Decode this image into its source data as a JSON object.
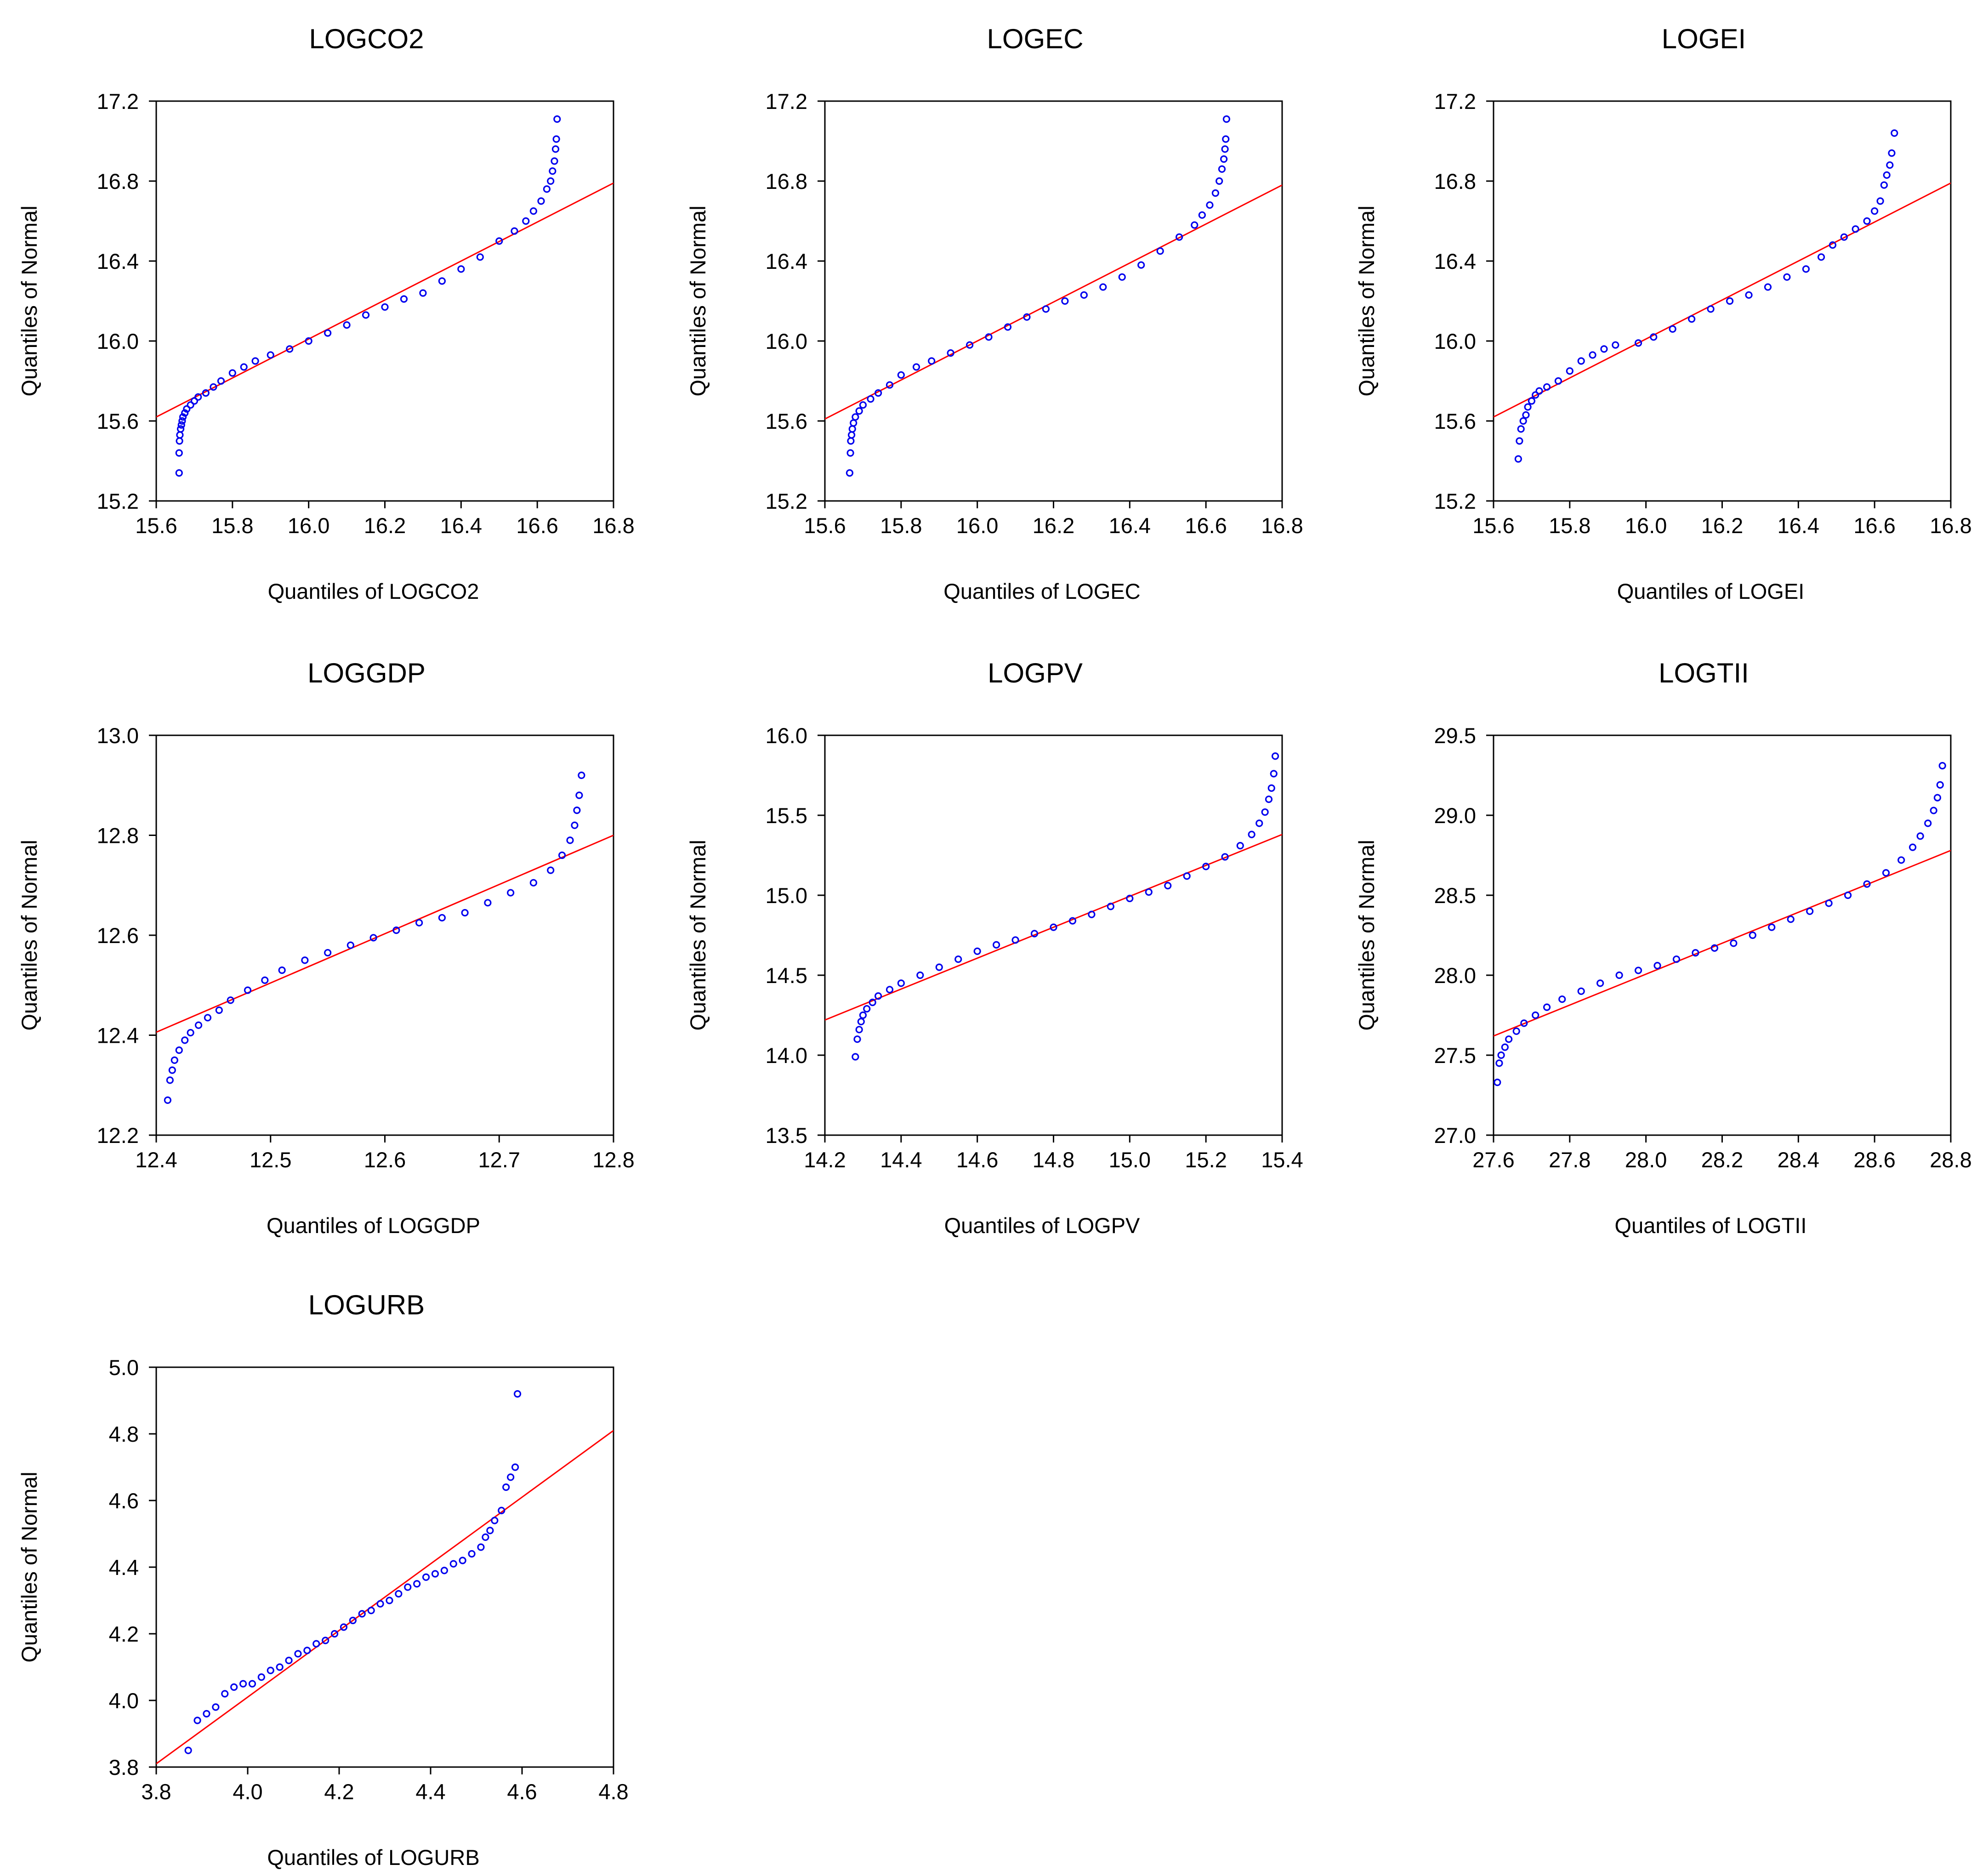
{
  "colors": {
    "points": "#0000ee",
    "reference_line": "#ff0000",
    "axes": "#000000",
    "background": "#ffffff"
  },
  "chart_data": [
    {
      "type": "scatter",
      "title": "LOGCO2",
      "xlabel": "Quantiles of LOGCO2",
      "ylabel": "Quantiles of Normal",
      "xlim": [
        15.6,
        16.8
      ],
      "ylim": [
        15.2,
        17.2
      ],
      "xticks": [
        "15.6",
        "15.8",
        "16.0",
        "16.2",
        "16.4",
        "16.6",
        "16.8"
      ],
      "yticks": [
        "15.2",
        "15.6",
        "16.0",
        "16.4",
        "16.8",
        "17.2"
      ],
      "reference_line": [
        [
          15.6,
          15.62
        ],
        [
          16.8,
          16.79
        ]
      ],
      "points": [
        [
          15.66,
          15.34
        ],
        [
          15.66,
          15.44
        ],
        [
          15.661,
          15.5
        ],
        [
          15.662,
          15.53
        ],
        [
          15.664,
          15.56
        ],
        [
          15.666,
          15.58
        ],
        [
          15.668,
          15.6
        ],
        [
          15.67,
          15.62
        ],
        [
          15.675,
          15.64
        ],
        [
          15.68,
          15.66
        ],
        [
          15.69,
          15.68
        ],
        [
          15.7,
          15.7
        ],
        [
          15.71,
          15.72
        ],
        [
          15.73,
          15.74
        ],
        [
          15.75,
          15.77
        ],
        [
          15.77,
          15.8
        ],
        [
          15.8,
          15.84
        ],
        [
          15.83,
          15.87
        ],
        [
          15.86,
          15.9
        ],
        [
          15.9,
          15.93
        ],
        [
          15.95,
          15.96
        ],
        [
          16.0,
          16.0
        ],
        [
          16.05,
          16.04
        ],
        [
          16.1,
          16.08
        ],
        [
          16.15,
          16.13
        ],
        [
          16.2,
          16.17
        ],
        [
          16.25,
          16.21
        ],
        [
          16.3,
          16.24
        ],
        [
          16.35,
          16.3
        ],
        [
          16.4,
          16.36
        ],
        [
          16.45,
          16.42
        ],
        [
          16.5,
          16.5
        ],
        [
          16.54,
          16.55
        ],
        [
          16.57,
          16.6
        ],
        [
          16.59,
          16.65
        ],
        [
          16.61,
          16.7
        ],
        [
          16.625,
          16.76
        ],
        [
          16.635,
          16.8
        ],
        [
          16.64,
          16.85
        ],
        [
          16.645,
          16.9
        ],
        [
          16.648,
          16.96
        ],
        [
          16.65,
          17.01
        ],
        [
          16.652,
          17.11
        ]
      ]
    },
    {
      "type": "scatter",
      "title": "LOGEC",
      "xlabel": "Quantiles of LOGEC",
      "ylabel": "Quantiles of Normal",
      "xlim": [
        15.6,
        16.8
      ],
      "ylim": [
        15.2,
        17.2
      ],
      "xticks": [
        "15.6",
        "15.8",
        "16.0",
        "16.2",
        "16.4",
        "16.6",
        "16.8"
      ],
      "yticks": [
        "15.2",
        "15.6",
        "16.0",
        "16.4",
        "16.8",
        "17.2"
      ],
      "reference_line": [
        [
          15.6,
          15.61
        ],
        [
          16.8,
          16.78
        ]
      ],
      "points": [
        [
          15.665,
          15.34
        ],
        [
          15.667,
          15.44
        ],
        [
          15.668,
          15.5
        ],
        [
          15.67,
          15.53
        ],
        [
          15.672,
          15.56
        ],
        [
          15.675,
          15.59
        ],
        [
          15.68,
          15.62
        ],
        [
          15.69,
          15.65
        ],
        [
          15.7,
          15.68
        ],
        [
          15.72,
          15.71
        ],
        [
          15.74,
          15.74
        ],
        [
          15.77,
          15.78
        ],
        [
          15.8,
          15.83
        ],
        [
          15.84,
          15.87
        ],
        [
          15.88,
          15.9
        ],
        [
          15.93,
          15.94
        ],
        [
          15.98,
          15.98
        ],
        [
          16.03,
          16.02
        ],
        [
          16.08,
          16.07
        ],
        [
          16.13,
          16.12
        ],
        [
          16.18,
          16.16
        ],
        [
          16.23,
          16.2
        ],
        [
          16.28,
          16.23
        ],
        [
          16.33,
          16.27
        ],
        [
          16.38,
          16.32
        ],
        [
          16.43,
          16.38
        ],
        [
          16.48,
          16.45
        ],
        [
          16.53,
          16.52
        ],
        [
          16.57,
          16.58
        ],
        [
          16.59,
          16.63
        ],
        [
          16.61,
          16.68
        ],
        [
          16.625,
          16.74
        ],
        [
          16.635,
          16.8
        ],
        [
          16.642,
          16.86
        ],
        [
          16.647,
          16.91
        ],
        [
          16.65,
          16.96
        ],
        [
          16.652,
          17.01
        ],
        [
          16.654,
          17.11
        ]
      ]
    },
    {
      "type": "scatter",
      "title": "LOGEI",
      "xlabel": "Quantiles of LOGEI",
      "ylabel": "Quantiles of Normal",
      "xlim": [
        15.6,
        16.8
      ],
      "ylim": [
        15.2,
        17.2
      ],
      "xticks": [
        "15.6",
        "15.8",
        "16.0",
        "16.2",
        "16.4",
        "16.6",
        "16.8"
      ],
      "yticks": [
        "15.2",
        "15.6",
        "16.0",
        "16.4",
        "16.8",
        "17.2"
      ],
      "reference_line": [
        [
          15.6,
          15.62
        ],
        [
          16.8,
          16.79
        ]
      ],
      "points": [
        [
          15.665,
          15.41
        ],
        [
          15.668,
          15.5
        ],
        [
          15.672,
          15.56
        ],
        [
          15.678,
          15.6
        ],
        [
          15.685,
          15.63
        ],
        [
          15.69,
          15.67
        ],
        [
          15.7,
          15.7
        ],
        [
          15.71,
          15.73
        ],
        [
          15.72,
          15.75
        ],
        [
          15.74,
          15.77
        ],
        [
          15.77,
          15.8
        ],
        [
          15.8,
          15.85
        ],
        [
          15.83,
          15.9
        ],
        [
          15.86,
          15.93
        ],
        [
          15.89,
          15.96
        ],
        [
          15.92,
          15.98
        ],
        [
          15.98,
          15.99
        ],
        [
          16.02,
          16.02
        ],
        [
          16.07,
          16.06
        ],
        [
          16.12,
          16.11
        ],
        [
          16.17,
          16.16
        ],
        [
          16.22,
          16.2
        ],
        [
          16.27,
          16.23
        ],
        [
          16.32,
          16.27
        ],
        [
          16.37,
          16.32
        ],
        [
          16.42,
          16.36
        ],
        [
          16.46,
          16.42
        ],
        [
          16.49,
          16.48
        ],
        [
          16.52,
          16.52
        ],
        [
          16.55,
          16.56
        ],
        [
          16.58,
          16.6
        ],
        [
          16.6,
          16.65
        ],
        [
          16.615,
          16.7
        ],
        [
          16.625,
          16.78
        ],
        [
          16.632,
          16.83
        ],
        [
          16.64,
          16.88
        ],
        [
          16.645,
          16.94
        ],
        [
          16.652,
          17.04
        ]
      ]
    },
    {
      "type": "scatter",
      "title": "LOGGDP",
      "xlabel": "Quantiles of LOGGDP",
      "ylabel": "Quantiles of Normal",
      "xlim": [
        12.4,
        12.8
      ],
      "ylim": [
        12.2,
        13.0
      ],
      "xticks": [
        "12.4",
        "12.5",
        "12.6",
        "12.7",
        "12.8"
      ],
      "yticks": [
        "12.2",
        "12.4",
        "12.6",
        "12.8",
        "13.0"
      ],
      "reference_line": [
        [
          12.4,
          12.406
        ],
        [
          12.8,
          12.8
        ]
      ],
      "points": [
        [
          12.41,
          12.27
        ],
        [
          12.412,
          12.31
        ],
        [
          12.414,
          12.33
        ],
        [
          12.416,
          12.35
        ],
        [
          12.42,
          12.37
        ],
        [
          12.425,
          12.39
        ],
        [
          12.43,
          12.405
        ],
        [
          12.437,
          12.42
        ],
        [
          12.445,
          12.435
        ],
        [
          12.455,
          12.45
        ],
        [
          12.465,
          12.47
        ],
        [
          12.48,
          12.49
        ],
        [
          12.495,
          12.51
        ],
        [
          12.51,
          12.53
        ],
        [
          12.53,
          12.55
        ],
        [
          12.55,
          12.565
        ],
        [
          12.57,
          12.58
        ],
        [
          12.59,
          12.595
        ],
        [
          12.61,
          12.61
        ],
        [
          12.63,
          12.625
        ],
        [
          12.65,
          12.635
        ],
        [
          12.67,
          12.645
        ],
        [
          12.69,
          12.665
        ],
        [
          12.71,
          12.685
        ],
        [
          12.73,
          12.705
        ],
        [
          12.745,
          12.73
        ],
        [
          12.755,
          12.76
        ],
        [
          12.762,
          12.79
        ],
        [
          12.766,
          12.82
        ],
        [
          12.768,
          12.85
        ],
        [
          12.77,
          12.88
        ],
        [
          12.772,
          12.92
        ]
      ]
    },
    {
      "type": "scatter",
      "title": "LOGPV",
      "xlabel": "Quantiles of  LOGPV",
      "ylabel": "Quantiles of Normal",
      "xlim": [
        14.2,
        15.4
      ],
      "ylim": [
        13.5,
        16.0
      ],
      "xticks": [
        "14.2",
        "14.4",
        "14.6",
        "14.8",
        "15.0",
        "15.2",
        "15.4"
      ],
      "yticks": [
        "13.5",
        "14.0",
        "14.5",
        "15.0",
        "15.5",
        "16.0"
      ],
      "reference_line": [
        [
          14.2,
          14.22
        ],
        [
          15.4,
          15.38
        ]
      ],
      "points": [
        [
          14.28,
          13.99
        ],
        [
          14.285,
          14.1
        ],
        [
          14.29,
          14.16
        ],
        [
          14.295,
          14.21
        ],
        [
          14.3,
          14.25
        ],
        [
          14.31,
          14.29
        ],
        [
          14.325,
          14.33
        ],
        [
          14.34,
          14.37
        ],
        [
          14.37,
          14.41
        ],
        [
          14.4,
          14.45
        ],
        [
          14.45,
          14.5
        ],
        [
          14.5,
          14.55
        ],
        [
          14.55,
          14.6
        ],
        [
          14.6,
          14.65
        ],
        [
          14.65,
          14.69
        ],
        [
          14.7,
          14.72
        ],
        [
          14.75,
          14.76
        ],
        [
          14.8,
          14.8
        ],
        [
          14.85,
          14.84
        ],
        [
          14.9,
          14.88
        ],
        [
          14.95,
          14.93
        ],
        [
          15.0,
          14.98
        ],
        [
          15.05,
          15.02
        ],
        [
          15.1,
          15.06
        ],
        [
          15.15,
          15.12
        ],
        [
          15.2,
          15.18
        ],
        [
          15.25,
          15.24
        ],
        [
          15.29,
          15.31
        ],
        [
          15.32,
          15.38
        ],
        [
          15.34,
          15.45
        ],
        [
          15.355,
          15.52
        ],
        [
          15.365,
          15.6
        ],
        [
          15.372,
          15.67
        ],
        [
          15.378,
          15.76
        ],
        [
          15.382,
          15.87
        ]
      ]
    },
    {
      "type": "scatter",
      "title": "LOGTII",
      "xlabel": "Quantiles of LOGTII",
      "ylabel": "Quantiles of Normal",
      "xlim": [
        27.6,
        28.8
      ],
      "ylim": [
        27.0,
        29.5
      ],
      "xticks": [
        "27.6",
        "27.8",
        "28.0",
        "28.2",
        "28.4",
        "28.6",
        "28.8"
      ],
      "yticks": [
        "27.0",
        "27.5",
        "28.0",
        "28.5",
        "29.0",
        "29.5"
      ],
      "reference_line": [
        [
          27.6,
          27.62
        ],
        [
          28.8,
          28.78
        ]
      ],
      "points": [
        [
          27.61,
          27.33
        ],
        [
          27.615,
          27.45
        ],
        [
          27.62,
          27.5
        ],
        [
          27.63,
          27.55
        ],
        [
          27.64,
          27.6
        ],
        [
          27.66,
          27.65
        ],
        [
          27.68,
          27.7
        ],
        [
          27.71,
          27.75
        ],
        [
          27.74,
          27.8
        ],
        [
          27.78,
          27.85
        ],
        [
          27.83,
          27.9
        ],
        [
          27.88,
          27.95
        ],
        [
          27.93,
          28.0
        ],
        [
          27.98,
          28.03
        ],
        [
          28.03,
          28.06
        ],
        [
          28.08,
          28.1
        ],
        [
          28.13,
          28.14
        ],
        [
          28.18,
          28.17
        ],
        [
          28.23,
          28.2
        ],
        [
          28.28,
          28.25
        ],
        [
          28.33,
          28.3
        ],
        [
          28.38,
          28.35
        ],
        [
          28.43,
          28.4
        ],
        [
          28.48,
          28.45
        ],
        [
          28.53,
          28.5
        ],
        [
          28.58,
          28.57
        ],
        [
          28.63,
          28.64
        ],
        [
          28.67,
          28.72
        ],
        [
          28.7,
          28.8
        ],
        [
          28.72,
          28.87
        ],
        [
          28.74,
          28.95
        ],
        [
          28.755,
          29.03
        ],
        [
          28.765,
          29.11
        ],
        [
          28.772,
          29.19
        ],
        [
          28.778,
          29.31
        ]
      ]
    },
    {
      "type": "scatter",
      "title": "LOGURB",
      "xlabel": "Quantiles of LOGURB",
      "ylabel": "Quantiles of Normal",
      "xlim": [
        3.8,
        4.8
      ],
      "ylim": [
        3.8,
        5.0
      ],
      "xticks": [
        "3.8",
        "4.0",
        "4.2",
        "4.4",
        "4.6",
        "4.8"
      ],
      "yticks": [
        "3.8",
        "4.0",
        "4.2",
        "4.4",
        "4.6",
        "4.8",
        "5.0"
      ],
      "reference_line": [
        [
          3.8,
          3.81
        ],
        [
          4.8,
          4.81
        ]
      ],
      "points": [
        [
          3.87,
          3.85
        ],
        [
          3.89,
          3.94
        ],
        [
          3.91,
          3.96
        ],
        [
          3.93,
          3.98
        ],
        [
          3.95,
          4.02
        ],
        [
          3.97,
          4.04
        ],
        [
          3.99,
          4.05
        ],
        [
          4.01,
          4.05
        ],
        [
          4.03,
          4.07
        ],
        [
          4.05,
          4.09
        ],
        [
          4.07,
          4.1
        ],
        [
          4.09,
          4.12
        ],
        [
          4.11,
          4.14
        ],
        [
          4.13,
          4.15
        ],
        [
          4.15,
          4.17
        ],
        [
          4.17,
          4.18
        ],
        [
          4.19,
          4.2
        ],
        [
          4.21,
          4.22
        ],
        [
          4.23,
          4.24
        ],
        [
          4.25,
          4.26
        ],
        [
          4.27,
          4.27
        ],
        [
          4.29,
          4.29
        ],
        [
          4.31,
          4.3
        ],
        [
          4.33,
          4.32
        ],
        [
          4.35,
          4.34
        ],
        [
          4.37,
          4.35
        ],
        [
          4.39,
          4.37
        ],
        [
          4.41,
          4.38
        ],
        [
          4.43,
          4.39
        ],
        [
          4.45,
          4.41
        ],
        [
          4.47,
          4.42
        ],
        [
          4.49,
          4.44
        ],
        [
          4.51,
          4.46
        ],
        [
          4.52,
          4.49
        ],
        [
          4.53,
          4.51
        ],
        [
          4.54,
          4.54
        ],
        [
          4.555,
          4.57
        ],
        [
          4.565,
          4.64
        ],
        [
          4.575,
          4.67
        ],
        [
          4.585,
          4.7
        ],
        [
          4.59,
          4.92
        ]
      ]
    }
  ]
}
